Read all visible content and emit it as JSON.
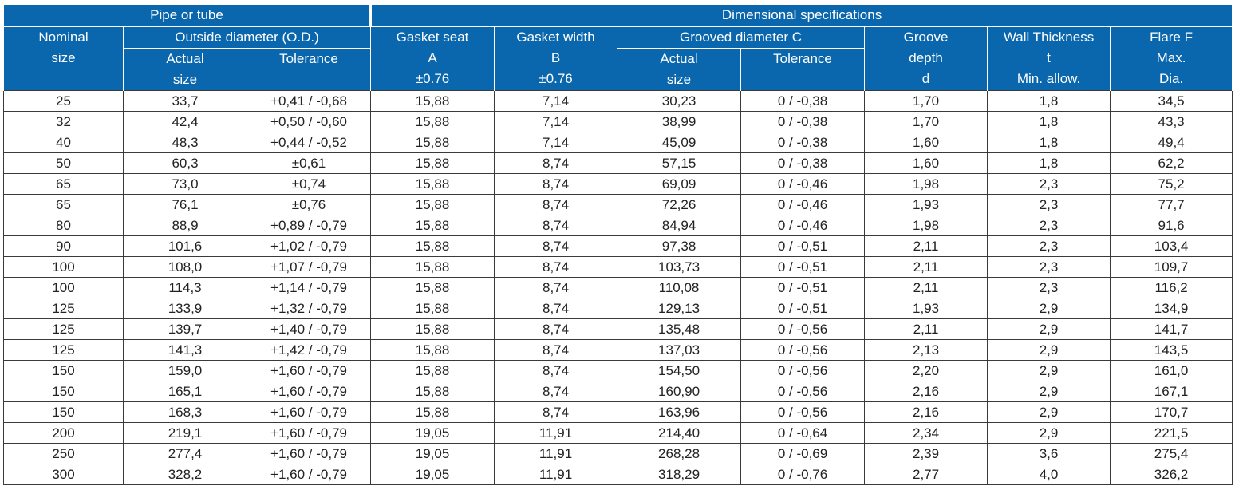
{
  "header": {
    "group1": "Pipe or tube",
    "group2": "Dimensional specifications",
    "nominal": [
      "Nominal",
      "size"
    ],
    "od": "Outside diameter (O.D.)",
    "od_actual": [
      "Actual",
      "size"
    ],
    "od_tol": "Tolerance",
    "gasket_seat": [
      "Gasket seat",
      "A",
      "±0.76"
    ],
    "gasket_width": [
      "Gasket width",
      "B",
      "±0.76"
    ],
    "grooved": "Grooved diameter  C",
    "gr_actual": [
      "Actual",
      "size"
    ],
    "gr_tol": "Tolerance",
    "groove_depth": [
      "Groove",
      "depth",
      "d"
    ],
    "wall": [
      "Wall Thickness",
      "t",
      "Min. allow."
    ],
    "flare": [
      "Flare F",
      "Max.",
      "Dia."
    ]
  },
  "rows": [
    [
      "25",
      "33,7",
      "+0,41 / -0,68",
      "15,88",
      "7,14",
      "30,23",
      "0 / -0,38",
      "1,70",
      "1,8",
      "34,5"
    ],
    [
      "32",
      "42,4",
      "+0,50 / -0,60",
      "15,88",
      "7,14",
      "38,99",
      "0 / -0,38",
      "1,70",
      "1,8",
      "43,3"
    ],
    [
      "40",
      "48,3",
      "+0,44 / -0,52",
      "15,88",
      "7,14",
      "45,09",
      "0 / -0,38",
      "1,60",
      "1,8",
      "49,4"
    ],
    [
      "50",
      "60,3",
      "±0,61",
      "15,88",
      "8,74",
      "57,15",
      "0 / -0,38",
      "1,60",
      "1,8",
      "62,2"
    ],
    [
      "65",
      "73,0",
      "±0,74",
      "15,88",
      "8,74",
      "69,09",
      "0 / -0,46",
      "1,98",
      "2,3",
      "75,2"
    ],
    [
      "65",
      "76,1",
      "±0,76",
      "15,88",
      "8,74",
      "72,26",
      "0 / -0,46",
      "1,93",
      "2,3",
      "77,7"
    ],
    [
      "80",
      "88,9",
      "+0,89 / -0,79",
      "15,88",
      "8,74",
      "84,94",
      "0 / -0,46",
      "1,98",
      "2,3",
      "91,6"
    ],
    [
      "90",
      "101,6",
      "+1,02 / -0,79",
      "15,88",
      "8,74",
      "97,38",
      "0 / -0,51",
      "2,11",
      "2,3",
      "103,4"
    ],
    [
      "100",
      "108,0",
      "+1,07 / -0,79",
      "15,88",
      "8,74",
      "103,73",
      "0 / -0,51",
      "2,11",
      "2,3",
      "109,7"
    ],
    [
      "100",
      "114,3",
      "+1,14 / -0,79",
      "15,88",
      "8,74",
      "110,08",
      "0 / -0,51",
      "2,11",
      "2,3",
      "116,2"
    ],
    [
      "125",
      "133,9",
      "+1,32 / -0,79",
      "15,88",
      "8,74",
      "129,13",
      "0 / -0,51",
      "1,93",
      "2,9",
      "134,9"
    ],
    [
      "125",
      "139,7",
      "+1,40 / -0,79",
      "15,88",
      "8,74",
      "135,48",
      "0 / -0,56",
      "2,11",
      "2,9",
      "141,7"
    ],
    [
      "125",
      "141,3",
      "+1,42 / -0,79",
      "15,88",
      "8,74",
      "137,03",
      "0 / -0,56",
      "2,13",
      "2,9",
      "143,5"
    ],
    [
      "150",
      "159,0",
      "+1,60 / -0,79",
      "15,88",
      "8,74",
      "154,50",
      "0 / -0,56",
      "2,20",
      "2,9",
      "161,0"
    ],
    [
      "150",
      "165,1",
      "+1,60 / -0,79",
      "15,88",
      "8,74",
      "160,90",
      "0 / -0,56",
      "2,16",
      "2,9",
      "167,1"
    ],
    [
      "150",
      "168,3",
      "+1,60 / -0,79",
      "15,88",
      "8,74",
      "163,96",
      "0 / -0,56",
      "2,16",
      "2,9",
      "170,7"
    ],
    [
      "200",
      "219,1",
      "+1,60 / -0,79",
      "19,05",
      "11,91",
      "214,40",
      "0 / -0,64",
      "2,34",
      "2,9",
      "221,5"
    ],
    [
      "250",
      "277,4",
      "+1,60 / -0,79",
      "19,05",
      "11,91",
      "268,28",
      "0 / -0,69",
      "2,39",
      "3,6",
      "275,4"
    ],
    [
      "300",
      "328,2",
      "+1,60 / -0,79",
      "19,05",
      "11,91",
      "318,29",
      "0 / -0,76",
      "2,77",
      "4,0",
      "326,2"
    ]
  ],
  "colors": {
    "header_bg": "#0a67ad",
    "header_text": "#ffffff",
    "grid": "#3a3a3a"
  }
}
